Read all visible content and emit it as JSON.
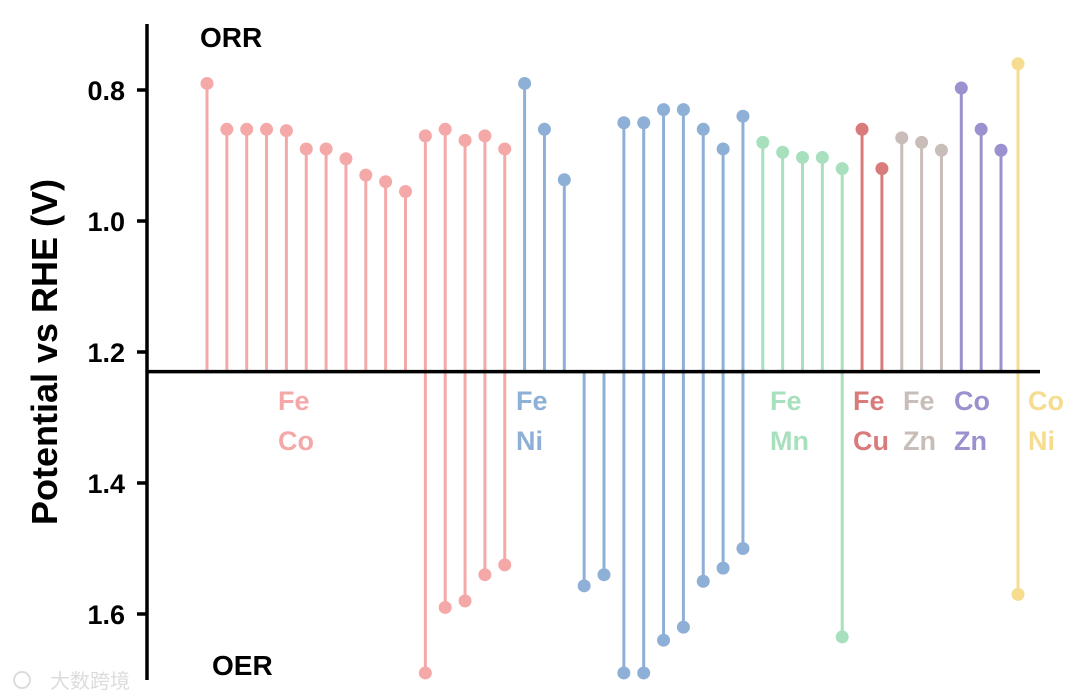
{
  "chart_data": {
    "type": "lollipop",
    "ylabel": "Potential vs RHE (V)",
    "ylim": [
      0.7,
      1.7
    ],
    "y_inverted": true,
    "yticks": [
      "0.8",
      "1.0",
      "1.2",
      "1.4",
      "1.6"
    ],
    "baseline": 1.23,
    "top_label": "ORR",
    "bottom_label": "OER",
    "watermark": "大数跨境",
    "groups": [
      {
        "name": [
          "Fe",
          "Co"
        ],
        "color": "#f4a9a8",
        "orr": [
          0.79,
          0.86,
          0.86,
          0.86,
          0.862,
          0.89,
          0.89,
          0.905,
          0.93,
          0.94,
          0.955,
          0.87,
          0.86,
          0.877,
          0.87,
          0.89
        ],
        "oer": [
          1.69,
          1.59,
          1.58,
          1.54,
          1.525
        ]
      },
      {
        "name": [
          "Fe",
          "Ni"
        ],
        "color": "#8eb0d6",
        "orr": [
          0.79,
          0.86,
          0.937,
          0.85,
          0.85,
          0.83,
          0.83,
          0.86,
          0.89,
          0.84
        ],
        "oer": [
          1.557,
          1.54,
          1.69,
          1.69,
          1.64,
          1.62,
          1.55,
          1.53,
          1.5
        ]
      },
      {
        "name": [
          "Fe",
          "Mn"
        ],
        "color": "#a8e0be",
        "orr": [
          0.88,
          0.895,
          0.903,
          0.903,
          0.92
        ],
        "oer": [
          1.635
        ]
      },
      {
        "name": [
          "Fe",
          "Cu"
        ],
        "color": "#d97b7b",
        "orr": [
          0.86,
          0.92
        ],
        "oer": []
      },
      {
        "name": [
          "Fe",
          "Zn"
        ],
        "color": "#c8bdb8",
        "orr": [
          0.873,
          0.88,
          0.892
        ],
        "oer": []
      },
      {
        "name": [
          "Co",
          "Zn"
        ],
        "color": "#9b91cf",
        "orr": [
          0.797,
          0.86,
          0.892
        ],
        "oer": []
      },
      {
        "name": [
          "Co",
          "Ni"
        ],
        "color": "#f5dc8e",
        "orr": [
          0.76
        ],
        "oer": [
          1.57
        ]
      }
    ]
  }
}
